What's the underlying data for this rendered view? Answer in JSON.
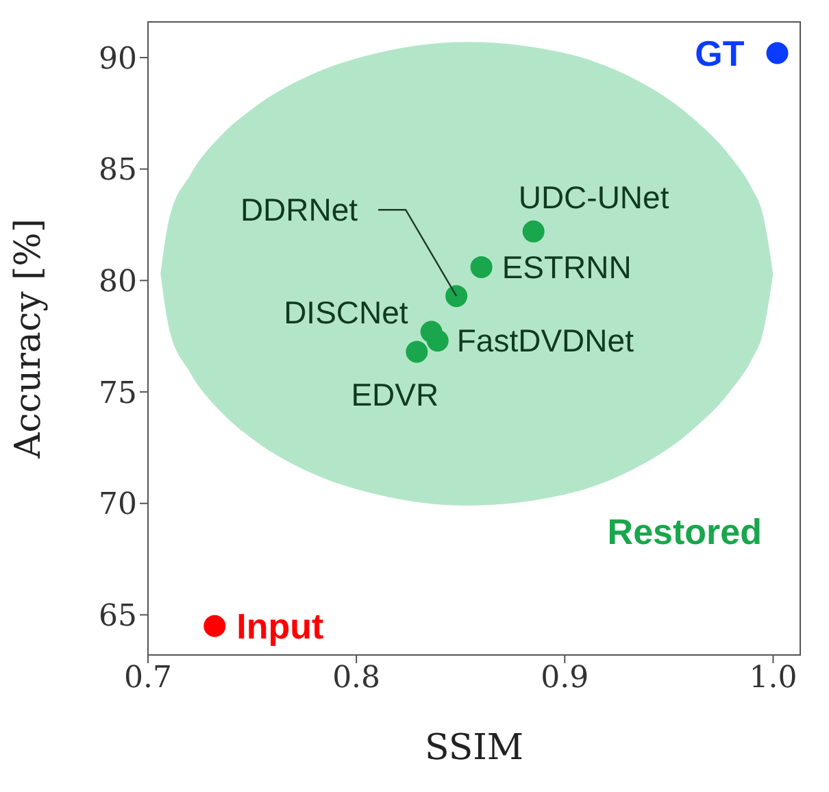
{
  "chart_data": {
    "type": "scatter",
    "xlabel": "SSIM",
    "ylabel": "Accuracy [%]",
    "xlim": [
      0.7,
      1.013
    ],
    "xticks": [
      {
        "value": 0.7,
        "label": "0.7"
      },
      {
        "value": 0.8,
        "label": "0.8"
      },
      {
        "value": 0.9,
        "label": "0.9"
      },
      {
        "value": 1.0,
        "label": "1.0"
      }
    ],
    "ylim": [
      63.2,
      91.6
    ],
    "yticks": [
      65,
      70,
      75,
      80,
      85,
      90
    ],
    "grid": false,
    "legend": false,
    "marker": "circle",
    "series": [
      {
        "type": "area",
        "color": "#b3e6c9",
        "marker": "none",
        "x": [
          0.706,
          0.71,
          0.72,
          0.735,
          0.75,
          0.78,
          0.81,
          0.853,
          0.9,
          0.93,
          0.96,
          0.98,
          0.99,
          0.995,
          1.0
        ],
        "values": [
          null,
          null,
          null,
          null,
          null,
          null,
          null,
          null,
          null,
          null,
          null,
          null,
          null,
          null,
          null
        ],
        "upper": [
          80.3,
          82.7,
          84.7,
          86.5,
          87.7,
          89.3,
          90.2,
          90.7,
          90.2,
          89.2,
          87.4,
          85.5,
          84.1,
          83.0,
          80.3
        ],
        "lower": [
          80.3,
          77.9,
          75.9,
          74.1,
          72.9,
          71.3,
          70.4,
          69.9,
          70.4,
          71.4,
          73.2,
          75.1,
          76.5,
          77.6,
          80.3
        ]
      },
      {
        "name": "GT",
        "color": "#0a3cff",
        "x": [
          1.002
        ],
        "values": [
          90.2
        ]
      },
      {
        "name": "Restored",
        "color": "#19a64c",
        "x": [
          0.885,
          0.86,
          0.848,
          0.836,
          0.839,
          0.829
        ],
        "values": [
          82.2,
          80.6,
          79.3,
          77.7,
          77.3,
          76.8
        ]
      },
      {
        "name": "Input",
        "color": "#ff0000",
        "x": [
          0.732
        ],
        "values": [
          64.5
        ]
      }
    ],
    "annotations": [
      {
        "text": "UDC-UNet",
        "x": 0.885,
        "y": 82.2
      },
      {
        "text": "ESTRNN",
        "x": 0.86,
        "y": 80.6
      },
      {
        "text": "DDRNet",
        "x": 0.848,
        "y": 79.3
      },
      {
        "text": "DISCNet",
        "x": 0.836,
        "y": 77.7
      },
      {
        "text": "FastDVDNet",
        "x": 0.839,
        "y": 77.3
      },
      {
        "text": "EDVR",
        "x": 0.829,
        "y": 76.8
      }
    ]
  }
}
